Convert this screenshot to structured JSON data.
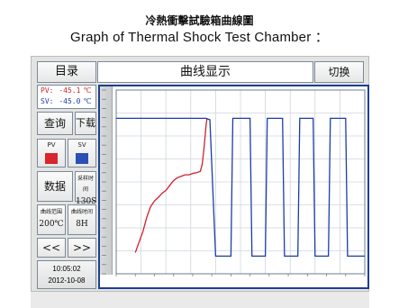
{
  "caption": {
    "title_zh": "冷熱衝擊試驗箱曲線圖",
    "title_en": "Graph of Thermal Shock Test Chamber ："
  },
  "header": {
    "menu_label": "目录",
    "title": "曲线显示",
    "switch_label": "切换"
  },
  "readout": {
    "pv_label": "PV:",
    "pv_value": "-45.1",
    "pv_unit": "℃",
    "sv_label": "SV:",
    "sv_value": "-45.0",
    "sv_unit": "℃"
  },
  "controls": {
    "query_label": "查询",
    "download_label": "下载",
    "pv_toggle_label": "PV",
    "sv_toggle_label": "SV",
    "data_label": "数据",
    "sample_label": "采样时间",
    "sample_value": "130S",
    "range_label": "曲线范围",
    "range_value": "200℃",
    "time_label": "曲线时间",
    "time_value": "8H",
    "prev_label": "<<",
    "next_label": ">>"
  },
  "clock": {
    "time": "10:05:02",
    "date": "2012-10-08"
  },
  "colors": {
    "pv": "#d0202a",
    "sv": "#1c3da6",
    "pv_toggle": "#d9252c",
    "sv_toggle": "#2c4fb5"
  },
  "chart_data": {
    "type": "line",
    "series": [
      {
        "name": "PV",
        "color": "#d0202a",
        "points": [
          [
            0.1,
            -40
          ],
          [
            0.12,
            -25
          ],
          [
            0.14,
            -10
          ],
          [
            0.16,
            10
          ],
          [
            0.18,
            25
          ],
          [
            0.2,
            33
          ],
          [
            0.22,
            38
          ],
          [
            0.24,
            44
          ],
          [
            0.26,
            48
          ],
          [
            0.28,
            55
          ],
          [
            0.3,
            62
          ],
          [
            0.32,
            66
          ],
          [
            0.34,
            68
          ],
          [
            0.36,
            70
          ],
          [
            0.38,
            70
          ],
          [
            0.4,
            72
          ],
          [
            0.42,
            73
          ],
          [
            0.44,
            75
          ],
          [
            0.45,
            85
          ],
          [
            0.46,
            110
          ],
          [
            0.47,
            140
          ],
          [
            0.475,
            150
          ]
        ]
      },
      {
        "name": "SV",
        "color": "#1c3da6",
        "points": [
          [
            0.0,
            150
          ],
          [
            0.47,
            150
          ],
          [
            0.49,
            148
          ],
          [
            0.52,
            -45
          ],
          [
            0.6,
            -45
          ],
          [
            0.61,
            150
          ],
          [
            0.7,
            150
          ],
          [
            0.71,
            -45
          ],
          [
            0.78,
            -45
          ],
          [
            0.79,
            150
          ],
          [
            0.87,
            150
          ],
          [
            0.88,
            -45
          ],
          [
            0.95,
            -45
          ],
          [
            0.96,
            150
          ],
          [
            1.03,
            150
          ],
          [
            1.04,
            -45
          ],
          [
            1.11,
            -45
          ],
          [
            1.12,
            150
          ],
          [
            1.2,
            150
          ],
          [
            1.21,
            -45
          ],
          [
            1.3,
            -45
          ]
        ]
      }
    ],
    "ylim": [
      -70,
      190
    ],
    "xlim": [
      0,
      1.3
    ],
    "grid": true
  }
}
